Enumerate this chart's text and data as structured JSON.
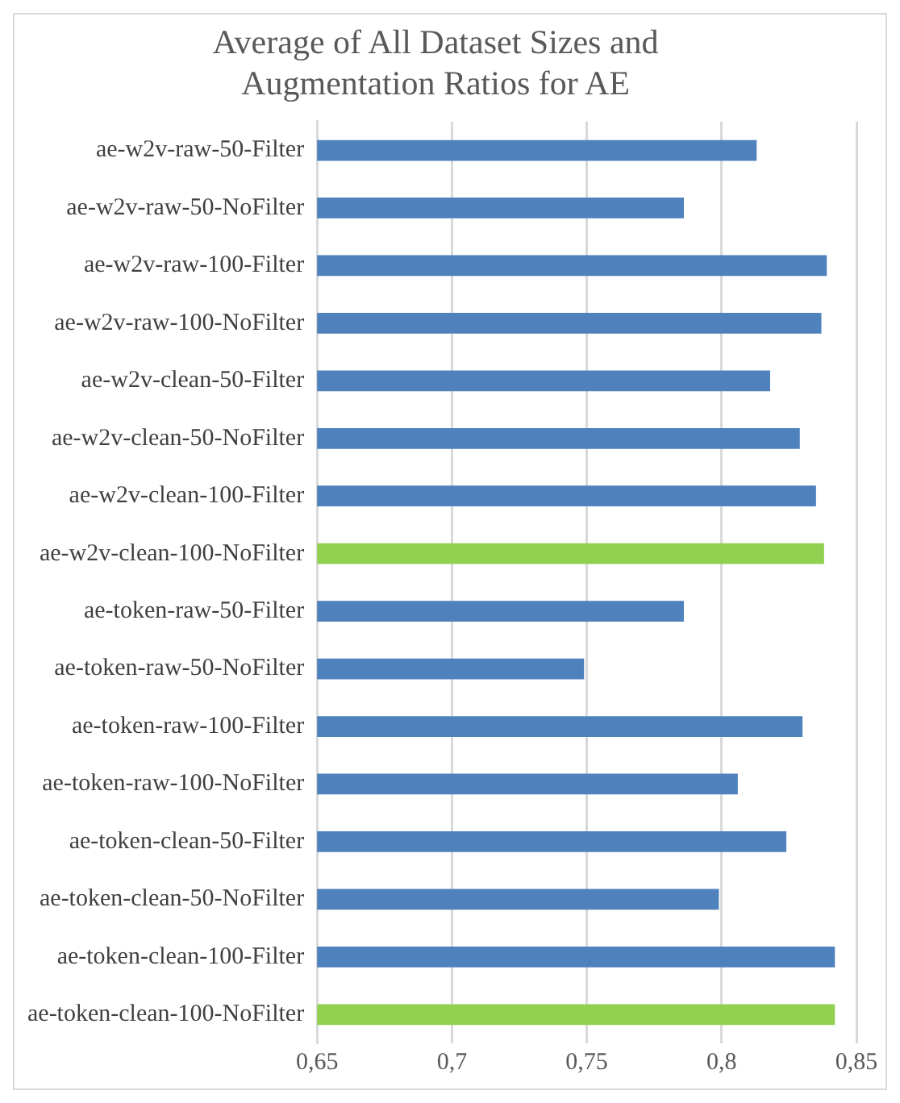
{
  "chart_data": {
    "type": "bar",
    "orientation": "horizontal",
    "title": "Average of All Dataset Sizes and Augmentation Ratios for AE",
    "categories": [
      "ae-w2v-raw-50-Filter",
      "ae-w2v-raw-50-NoFilter",
      "ae-w2v-raw-100-Filter",
      "ae-w2v-raw-100-NoFilter",
      "ae-w2v-clean-50-Filter",
      "ae-w2v-clean-50-NoFilter",
      "ae-w2v-clean-100-Filter",
      "ae-w2v-clean-100-NoFilter",
      "ae-token-raw-50-Filter",
      "ae-token-raw-50-NoFilter",
      "ae-token-raw-100-Filter",
      "ae-token-raw-100-NoFilter",
      "ae-token-clean-50-Filter",
      "ae-token-clean-50-NoFilter",
      "ae-token-clean-100-Filter",
      "ae-token-clean-100-NoFilter"
    ],
    "values": [
      0.813,
      0.786,
      0.839,
      0.837,
      0.818,
      0.829,
      0.835,
      0.838,
      0.786,
      0.749,
      0.83,
      0.806,
      0.824,
      0.799,
      0.842,
      0.842
    ],
    "colors": [
      "#4f81bd",
      "#4f81bd",
      "#4f81bd",
      "#4f81bd",
      "#4f81bd",
      "#4f81bd",
      "#4f81bd",
      "#92d050",
      "#4f81bd",
      "#4f81bd",
      "#4f81bd",
      "#4f81bd",
      "#4f81bd",
      "#4f81bd",
      "#4f81bd",
      "#92d050"
    ],
    "xlim": [
      0.65,
      0.85
    ],
    "xticks": [
      {
        "value": 0.65,
        "label": "0,65"
      },
      {
        "value": 0.7,
        "label": "0,7"
      },
      {
        "value": 0.75,
        "label": "0,75"
      },
      {
        "value": 0.8,
        "label": "0,8"
      },
      {
        "value": 0.85,
        "label": "0,85"
      }
    ],
    "grid": "x",
    "legend": false
  }
}
